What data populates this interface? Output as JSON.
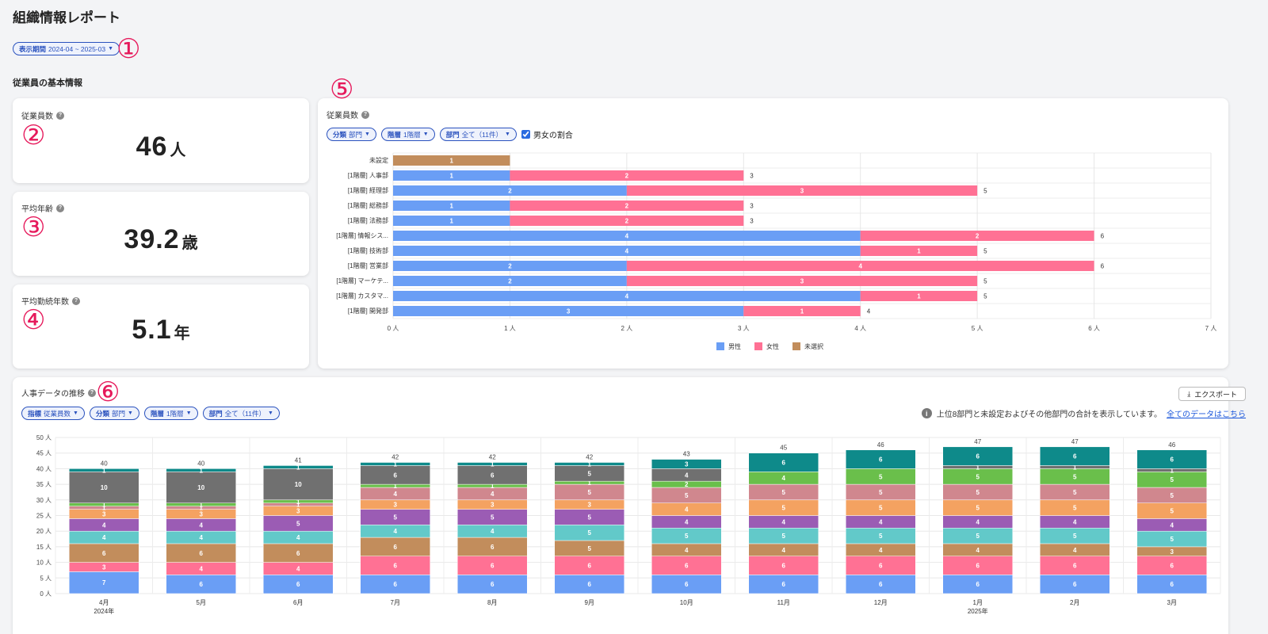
{
  "page": {
    "title": "組織情報レポート"
  },
  "period_chip": {
    "label": "表示期間",
    "value": "2024-04 ~ 2025-03"
  },
  "markers": [
    "①",
    "②",
    "③",
    "④",
    "⑤",
    "⑥"
  ],
  "section_label": "従業員の基本情報",
  "stats": [
    {
      "title": "従業員数",
      "value": "46",
      "unit": "人"
    },
    {
      "title": "平均年齢",
      "value": "39.2",
      "unit": "歳"
    },
    {
      "title": "平均勤続年数",
      "value": "5.1",
      "unit": "年"
    }
  ],
  "headcount_panel": {
    "title": "従業員数",
    "filters": [
      {
        "label": "分類",
        "value": "部門"
      },
      {
        "label": "階層",
        "value": "1階層"
      },
      {
        "label": "部門",
        "value": "全て（11件）"
      }
    ],
    "checkbox_label": "男女の割合"
  },
  "trend_panel": {
    "title": "人事データの推移",
    "filters": [
      {
        "label": "指標",
        "value": "従業員数"
      },
      {
        "label": "分類",
        "value": "部門"
      },
      {
        "label": "階層",
        "value": "1階層"
      },
      {
        "label": "部門",
        "value": "全て（11件）"
      }
    ],
    "export_label": "エクスポート",
    "info_text": "上位8部門と未設定およびその他部門の合計を表示しています。",
    "info_link": "全てのデータはこちら"
  },
  "colors": {
    "male": "#6a9ef5",
    "female": "#ff7194",
    "unselected": "#c28d5c",
    "dept": [
      "#6a9ef5",
      "#ff7194",
      "#c28d5c",
      "#62c9c9",
      "#9b5cb4",
      "#f4a261",
      "#d0878e",
      "#6abf4b",
      "#707070",
      "#0e8a8a"
    ]
  },
  "chart_data": [
    {
      "type": "bar",
      "orientation": "horizontal",
      "stacked": true,
      "categories": [
        "未設定",
        "[1階層] 人事部",
        "[1階層] 経理部",
        "[1階層] 総務部",
        "[1階層] 法務部",
        "[1階層] 情報シス...",
        "[1階層] 技術部",
        "[1階層] 営業部",
        "[1階層] マーケテ...",
        "[1階層] カスタマ...",
        "[1階層] 開発部"
      ],
      "series": [
        {
          "name": "男性",
          "values": [
            0,
            1,
            2,
            1,
            1,
            4,
            4,
            2,
            2,
            4,
            3
          ]
        },
        {
          "name": "女性",
          "values": [
            0,
            2,
            3,
            2,
            2,
            2,
            1,
            4,
            3,
            1,
            1
          ]
        },
        {
          "name": "未選択",
          "values": [
            1,
            0,
            0,
            0,
            0,
            0,
            0,
            0,
            0,
            0,
            0
          ]
        }
      ],
      "totals": [
        null,
        3,
        5,
        3,
        3,
        6,
        5,
        6,
        5,
        5,
        4
      ],
      "xlim": [
        0,
        7
      ],
      "xticks": [
        "0 人",
        "1 人",
        "2 人",
        "3 人",
        "4 人",
        "5 人",
        "6 人",
        "7 人"
      ],
      "legend": "bottom",
      "grid": true
    },
    {
      "type": "bar",
      "stacked": true,
      "categories": [
        "4月",
        "5月",
        "6月",
        "7月",
        "8月",
        "9月",
        "10月",
        "11月",
        "12月",
        "1月",
        "2月",
        "3月"
      ],
      "year_labels": [
        "2024年",
        "",
        "",
        "",
        "",
        "",
        "",
        "",
        "",
        "2025年",
        "",
        ""
      ],
      "series": [
        {
          "values": [
            7,
            6,
            6,
            6,
            6,
            6,
            6,
            6,
            6,
            6,
            6,
            6
          ]
        },
        {
          "values": [
            3,
            4,
            4,
            6,
            6,
            6,
            6,
            6,
            6,
            6,
            6,
            6
          ]
        },
        {
          "values": [
            6,
            6,
            6,
            6,
            6,
            5,
            4,
            4,
            4,
            4,
            4,
            3
          ]
        },
        {
          "values": [
            4,
            4,
            4,
            4,
            4,
            5,
            5,
            5,
            5,
            5,
            5,
            5
          ]
        },
        {
          "values": [
            4,
            4,
            5,
            5,
            5,
            5,
            4,
            4,
            4,
            4,
            4,
            4
          ]
        },
        {
          "values": [
            3,
            3,
            3,
            3,
            3,
            3,
            4,
            5,
            5,
            5,
            5,
            5
          ]
        },
        {
          "values": [
            1,
            1,
            1,
            4,
            4,
            5,
            5,
            5,
            5,
            5,
            5,
            5
          ]
        },
        {
          "values": [
            1,
            1,
            1,
            1,
            1,
            1,
            2,
            4,
            5,
            5,
            5,
            5
          ]
        },
        {
          "values": [
            10,
            10,
            10,
            6,
            6,
            5,
            4,
            0,
            0,
            1,
            1,
            1
          ]
        },
        {
          "values": [
            1,
            1,
            1,
            1,
            1,
            1,
            3,
            6,
            6,
            6,
            6,
            6
          ]
        }
      ],
      "totals": [
        40,
        40,
        41,
        42,
        42,
        42,
        43,
        45,
        46,
        47,
        47,
        46
      ],
      "ylim": [
        0,
        50
      ],
      "yticks": [
        "0 人",
        "5 人",
        "10 人",
        "15 人",
        "20 人",
        "25 人",
        "30 人",
        "35 人",
        "40 人",
        "45 人",
        "50 人"
      ],
      "grid": true
    }
  ]
}
